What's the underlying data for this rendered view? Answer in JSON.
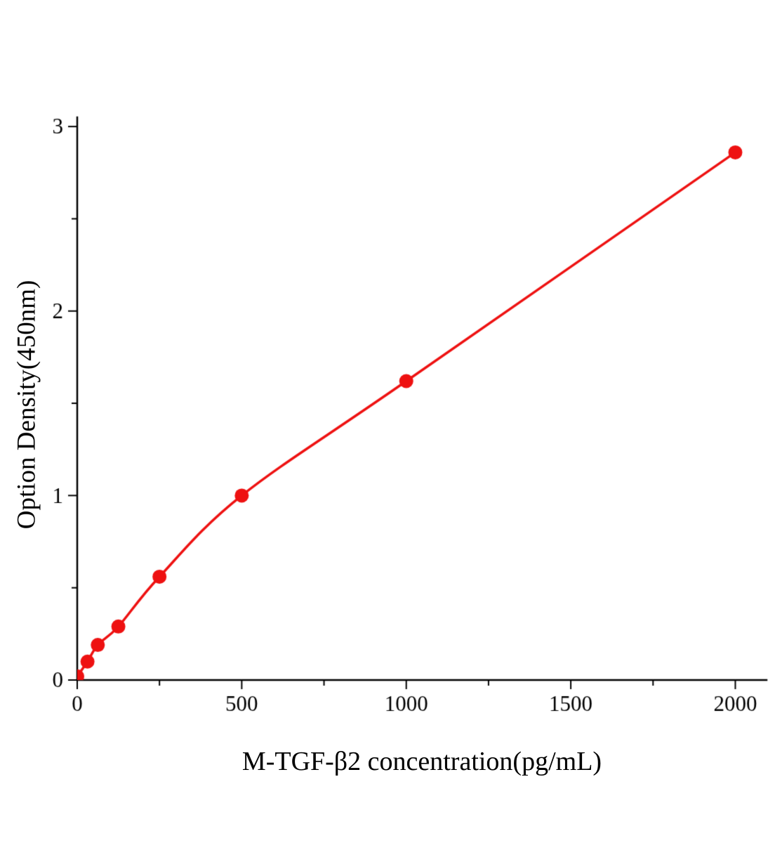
{
  "chart_data": {
    "type": "scatter",
    "title": "",
    "xlabel": "M-TGF-β2 concentration(pg/mL)",
    "ylabel": "Option Density(450nm)",
    "x": [
      0,
      31.25,
      62.5,
      125,
      250,
      500,
      1000,
      2000
    ],
    "y": [
      0.02,
      0.1,
      0.19,
      0.29,
      0.56,
      1.0,
      1.62,
      2.86
    ],
    "xlim": [
      0,
      2095
    ],
    "ylim": [
      0,
      3.05
    ],
    "x_ticks": [
      0,
      500,
      1000,
      1500,
      2000
    ],
    "x_minor_ticks": [
      250,
      750,
      1250,
      1750
    ],
    "y_ticks": [
      0,
      1,
      2,
      3
    ],
    "y_minor_ticks": [
      0.5,
      1.5,
      2.5
    ],
    "grid": false,
    "legend": "none",
    "colors": {
      "curve": "#ee1111",
      "marker": "#ee1111",
      "axis": "#000000",
      "background": "#ffffff"
    }
  }
}
